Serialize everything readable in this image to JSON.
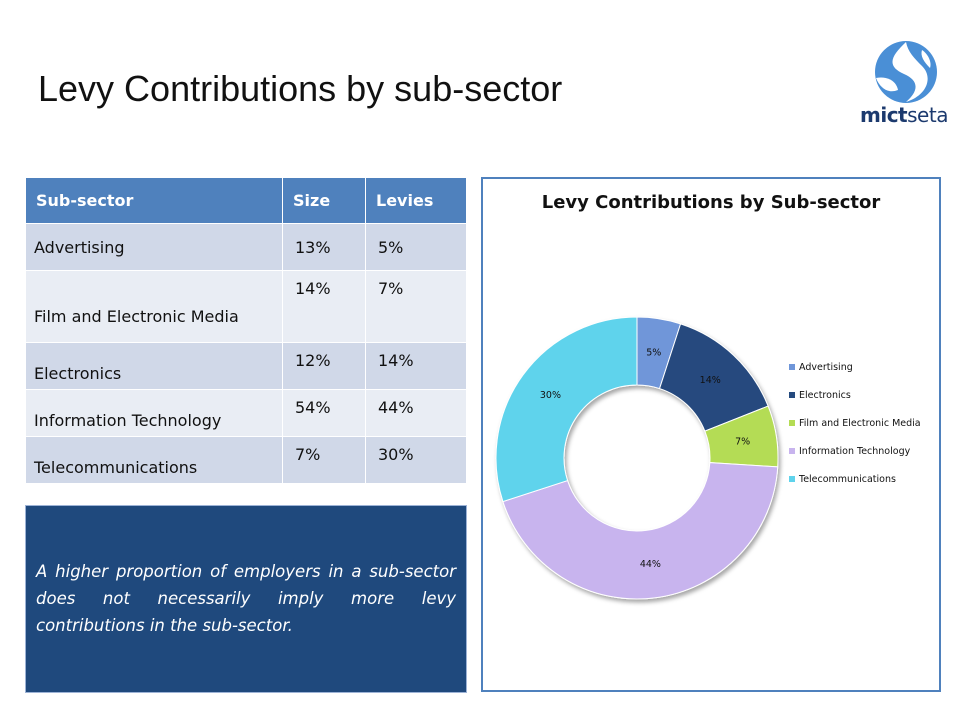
{
  "page": {
    "title": "Levy Contributions by sub-sector",
    "logo_text_bold": "mict",
    "logo_text_light": "seta"
  },
  "table": {
    "headers": [
      "Sub-sector",
      "Size",
      "Levies"
    ],
    "rows": [
      [
        "Advertising",
        "13%",
        "5%"
      ],
      [
        "Film and Electronic Media",
        "14%",
        "7%"
      ],
      [
        "Electronics",
        "12%",
        "14%"
      ],
      [
        "Information Technology",
        "54%",
        "44%"
      ],
      [
        "Telecommunications",
        "7%",
        "30%"
      ]
    ]
  },
  "note": {
    "text": "A higher proportion of employers in a sub-sector does not necessarily imply more levy contributions in the sub-sector."
  },
  "colors": {
    "header_blue": "#4f81bd",
    "note_blue": "#1f497d"
  },
  "chart_data": {
    "type": "pie",
    "donut": true,
    "title": "Levy Contributions by Sub-sector",
    "legend_position": "right",
    "categories": [
      "Advertising",
      "Electronics",
      "Film and Electronic Media",
      "Information Technology",
      "Telecommunications"
    ],
    "values": [
      5,
      14,
      7,
      44,
      30
    ],
    "data_labels": [
      "5%",
      "14%",
      "7%",
      "44%",
      "30%"
    ],
    "colors": [
      "#6f96d9",
      "#254a7e",
      "#b4dc54",
      "#c8b4ee",
      "#5fd3ec"
    ]
  }
}
